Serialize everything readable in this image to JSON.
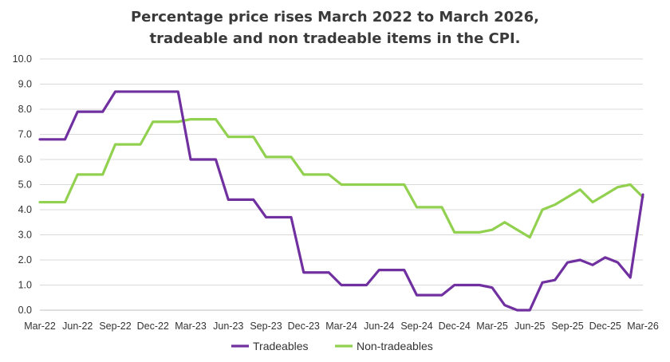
{
  "chart_data": {
    "type": "line",
    "title_lines": [
      "Percentage price rises March 2022 to March 2026,",
      "tradeable and non tradeable items in the CPI."
    ],
    "ylim": [
      0,
      10
    ],
    "yticks": [
      "0.0",
      "1.0",
      "2.0",
      "3.0",
      "4.0",
      "5.0",
      "6.0",
      "7.0",
      "8.0",
      "9.0",
      "10.0"
    ],
    "grid": "horizontal",
    "legend_position": "bottom-center",
    "x_tick_labels": [
      "Mar-22",
      "Jun-22",
      "Sep-22",
      "Dec-22",
      "Mar-23",
      "Jun-23",
      "Sep-23",
      "Dec-23",
      "Mar-24",
      "Jun-24",
      "Sep-24",
      "Dec-24",
      "Mar-25",
      "Jun-25",
      "Sep-25",
      "Dec-25",
      "Mar-26"
    ],
    "x": [
      "Mar-22",
      "Apr-22",
      "May-22",
      "Jun-22",
      "Jul-22",
      "Aug-22",
      "Sep-22",
      "Oct-22",
      "Nov-22",
      "Dec-22",
      "Jan-23",
      "Feb-23",
      "Mar-23",
      "Apr-23",
      "May-23",
      "Jun-23",
      "Jul-23",
      "Aug-23",
      "Sep-23",
      "Oct-23",
      "Nov-23",
      "Dec-23",
      "Jan-24",
      "Feb-24",
      "Mar-24",
      "Apr-24",
      "May-24",
      "Jun-24",
      "Jul-24",
      "Aug-24",
      "Sep-24",
      "Oct-24",
      "Nov-24",
      "Dec-24",
      "Jan-25",
      "Feb-25",
      "Mar-25",
      "Apr-25",
      "May-25",
      "Jun-25",
      "Jul-25",
      "Aug-25",
      "Sep-25",
      "Oct-25",
      "Nov-25",
      "Dec-25",
      "Jan-26",
      "Feb-26",
      "Mar-26"
    ],
    "series": [
      {
        "name": "Tradeables",
        "color": "#7030a0",
        "values": [
          6.8,
          6.8,
          6.8,
          7.9,
          7.9,
          7.9,
          8.7,
          8.7,
          8.7,
          8.7,
          8.7,
          8.7,
          6.0,
          6.0,
          6.0,
          4.4,
          4.4,
          4.4,
          3.7,
          3.7,
          3.7,
          1.5,
          1.5,
          1.5,
          1.0,
          1.0,
          1.0,
          1.6,
          1.6,
          1.6,
          0.6,
          0.6,
          0.6,
          1.0,
          1.0,
          1.0,
          0.9,
          0.2,
          0.0,
          0.0,
          1.1,
          1.2,
          1.9,
          2.0,
          1.8,
          2.1,
          1.9,
          1.3,
          4.6
        ]
      },
      {
        "name": "Non-tradeables",
        "color": "#92d050",
        "values": [
          4.3,
          4.3,
          4.3,
          5.4,
          5.4,
          5.4,
          6.6,
          6.6,
          6.6,
          7.5,
          7.5,
          7.5,
          7.6,
          7.6,
          7.6,
          6.9,
          6.9,
          6.9,
          6.1,
          6.1,
          6.1,
          5.4,
          5.4,
          5.4,
          5.0,
          5.0,
          5.0,
          5.0,
          5.0,
          5.0,
          4.1,
          4.1,
          4.1,
          3.1,
          3.1,
          3.1,
          3.2,
          3.5,
          3.2,
          2.9,
          4.0,
          4.2,
          4.5,
          4.8,
          4.3,
          4.6,
          4.9,
          5.0,
          4.5
        ]
      }
    ]
  }
}
